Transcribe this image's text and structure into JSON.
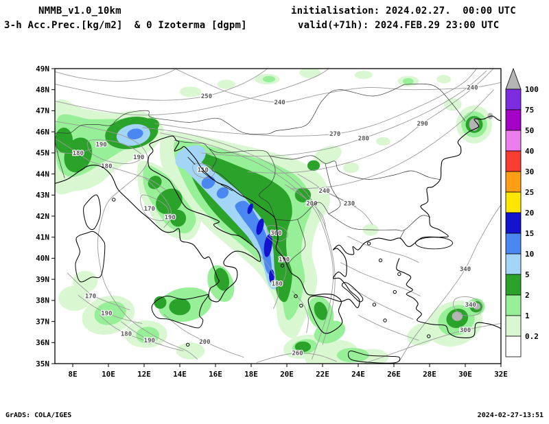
{
  "header": {
    "model": "NMMB_v1.0_10km",
    "variable": "3-h Acc.Prec.[kg/m2]  & 0 Izoterma [dgpm]",
    "init": "initialisation: 2024.02.27.  00:00 UTC",
    "valid": "valid(+71h): 2024.FEB.29 23:00 UTC"
  },
  "footer": {
    "credit": "GrADS: COLA/IGES",
    "timestamp": "2024-02-27-13:51"
  },
  "legend": {
    "values": [
      "100",
      "75",
      "50",
      "40",
      "30",
      "25",
      "20",
      "15",
      "10",
      "5",
      "2",
      "1",
      "0.2"
    ],
    "colors_top_to_bottom": [
      "#b4b4b4",
      "#7d2cdf",
      "#a500c8",
      "#ec7dec",
      "#f93d32",
      "#ff9e14",
      "#ffe600",
      "#1212cf",
      "#4b87f0",
      "#a3d5f7",
      "#2ba32b",
      "#97ef97",
      "#d9f8d2",
      "#ffffff"
    ]
  },
  "chart_data": {
    "type": "heatmap",
    "title": "3-h Acc.Prec.[kg/m2] & 0 Izoterma [dgpm]",
    "x_axis": {
      "ticks": [
        "8E",
        "10E",
        "12E",
        "14E",
        "16E",
        "18E",
        "20E",
        "22E",
        "24E",
        "26E",
        "28E",
        "30E",
        "32E"
      ],
      "range_deg_east": [
        7,
        32
      ]
    },
    "y_axis": {
      "ticks": [
        "49N",
        "48N",
        "47N",
        "46N",
        "45N",
        "44N",
        "43N",
        "42N",
        "41N",
        "40N",
        "39N",
        "38N",
        "37N",
        "36N",
        "35N"
      ],
      "range_deg_north": [
        35,
        49
      ]
    },
    "colorbar": {
      "unit": "kg/m2",
      "levels": [
        0.2,
        1,
        2,
        5,
        10,
        15,
        20,
        25,
        30,
        40,
        50,
        75,
        100
      ],
      "legend_position": "right"
    },
    "isoline_field": {
      "name": "0C isotherm height",
      "unit": "dgpm",
      "labels": [
        {
          "value": "250",
          "lon": 15.5,
          "lat": 47.7
        },
        {
          "value": "240",
          "lon": 19.6,
          "lat": 47.4
        },
        {
          "value": "240",
          "lon": 30.4,
          "lat": 48.1
        },
        {
          "value": "290",
          "lon": 27.6,
          "lat": 46.4
        },
        {
          "value": "270",
          "lon": 22.7,
          "lat": 45.9
        },
        {
          "value": "280",
          "lon": 24.3,
          "lat": 45.7
        },
        {
          "value": "190",
          "lon": 9.6,
          "lat": 45.4
        },
        {
          "value": "190",
          "lon": 11.7,
          "lat": 44.8
        },
        {
          "value": "180",
          "lon": 8.3,
          "lat": 45.0
        },
        {
          "value": "180",
          "lon": 9.9,
          "lat": 44.38
        },
        {
          "value": "110",
          "lon": 15.3,
          "lat": 44.2
        },
        {
          "value": "170",
          "lon": 12.3,
          "lat": 42.35
        },
        {
          "value": "190",
          "lon": 13.45,
          "lat": 41.95
        },
        {
          "value": "300",
          "lon": 19.4,
          "lat": 41.2
        },
        {
          "value": "190",
          "lon": 19.85,
          "lat": 39.95
        },
        {
          "value": "180",
          "lon": 19.45,
          "lat": 38.8
        },
        {
          "value": "170",
          "lon": 9.0,
          "lat": 38.2
        },
        {
          "value": "190",
          "lon": 9.9,
          "lat": 37.4
        },
        {
          "value": "180",
          "lon": 11.0,
          "lat": 36.42
        },
        {
          "value": "190",
          "lon": 12.3,
          "lat": 36.1
        },
        {
          "value": "200",
          "lon": 15.4,
          "lat": 36.05
        },
        {
          "value": "260",
          "lon": 20.6,
          "lat": 35.5
        },
        {
          "value": "200",
          "lon": 21.4,
          "lat": 42.6
        },
        {
          "value": "230",
          "lon": 23.5,
          "lat": 42.6
        },
        {
          "value": "240",
          "lon": 22.1,
          "lat": 43.2
        },
        {
          "value": "340",
          "lon": 30.0,
          "lat": 39.5
        },
        {
          "value": "340",
          "lon": 30.3,
          "lat": 37.8
        },
        {
          "value": "300",
          "lon": 30.0,
          "lat": 36.6
        }
      ]
    },
    "precip_maxima_regions": [
      {
        "area": "Adriatic coast / Albania streak",
        "shaded_range_kg_m2": "15-20"
      },
      {
        "area": "NW Italy / Alps",
        "shaded_range_kg_m2": "10-15"
      },
      {
        "area": "Dinaric belt",
        "shaded_range_kg_m2": "2-5"
      },
      {
        "area": "SW Turkey spots",
        "shaded_range_kg_m2": ">100"
      },
      {
        "area": "NW Black Sea coast spot",
        "shaded_range_kg_m2": ">100"
      }
    ]
  }
}
